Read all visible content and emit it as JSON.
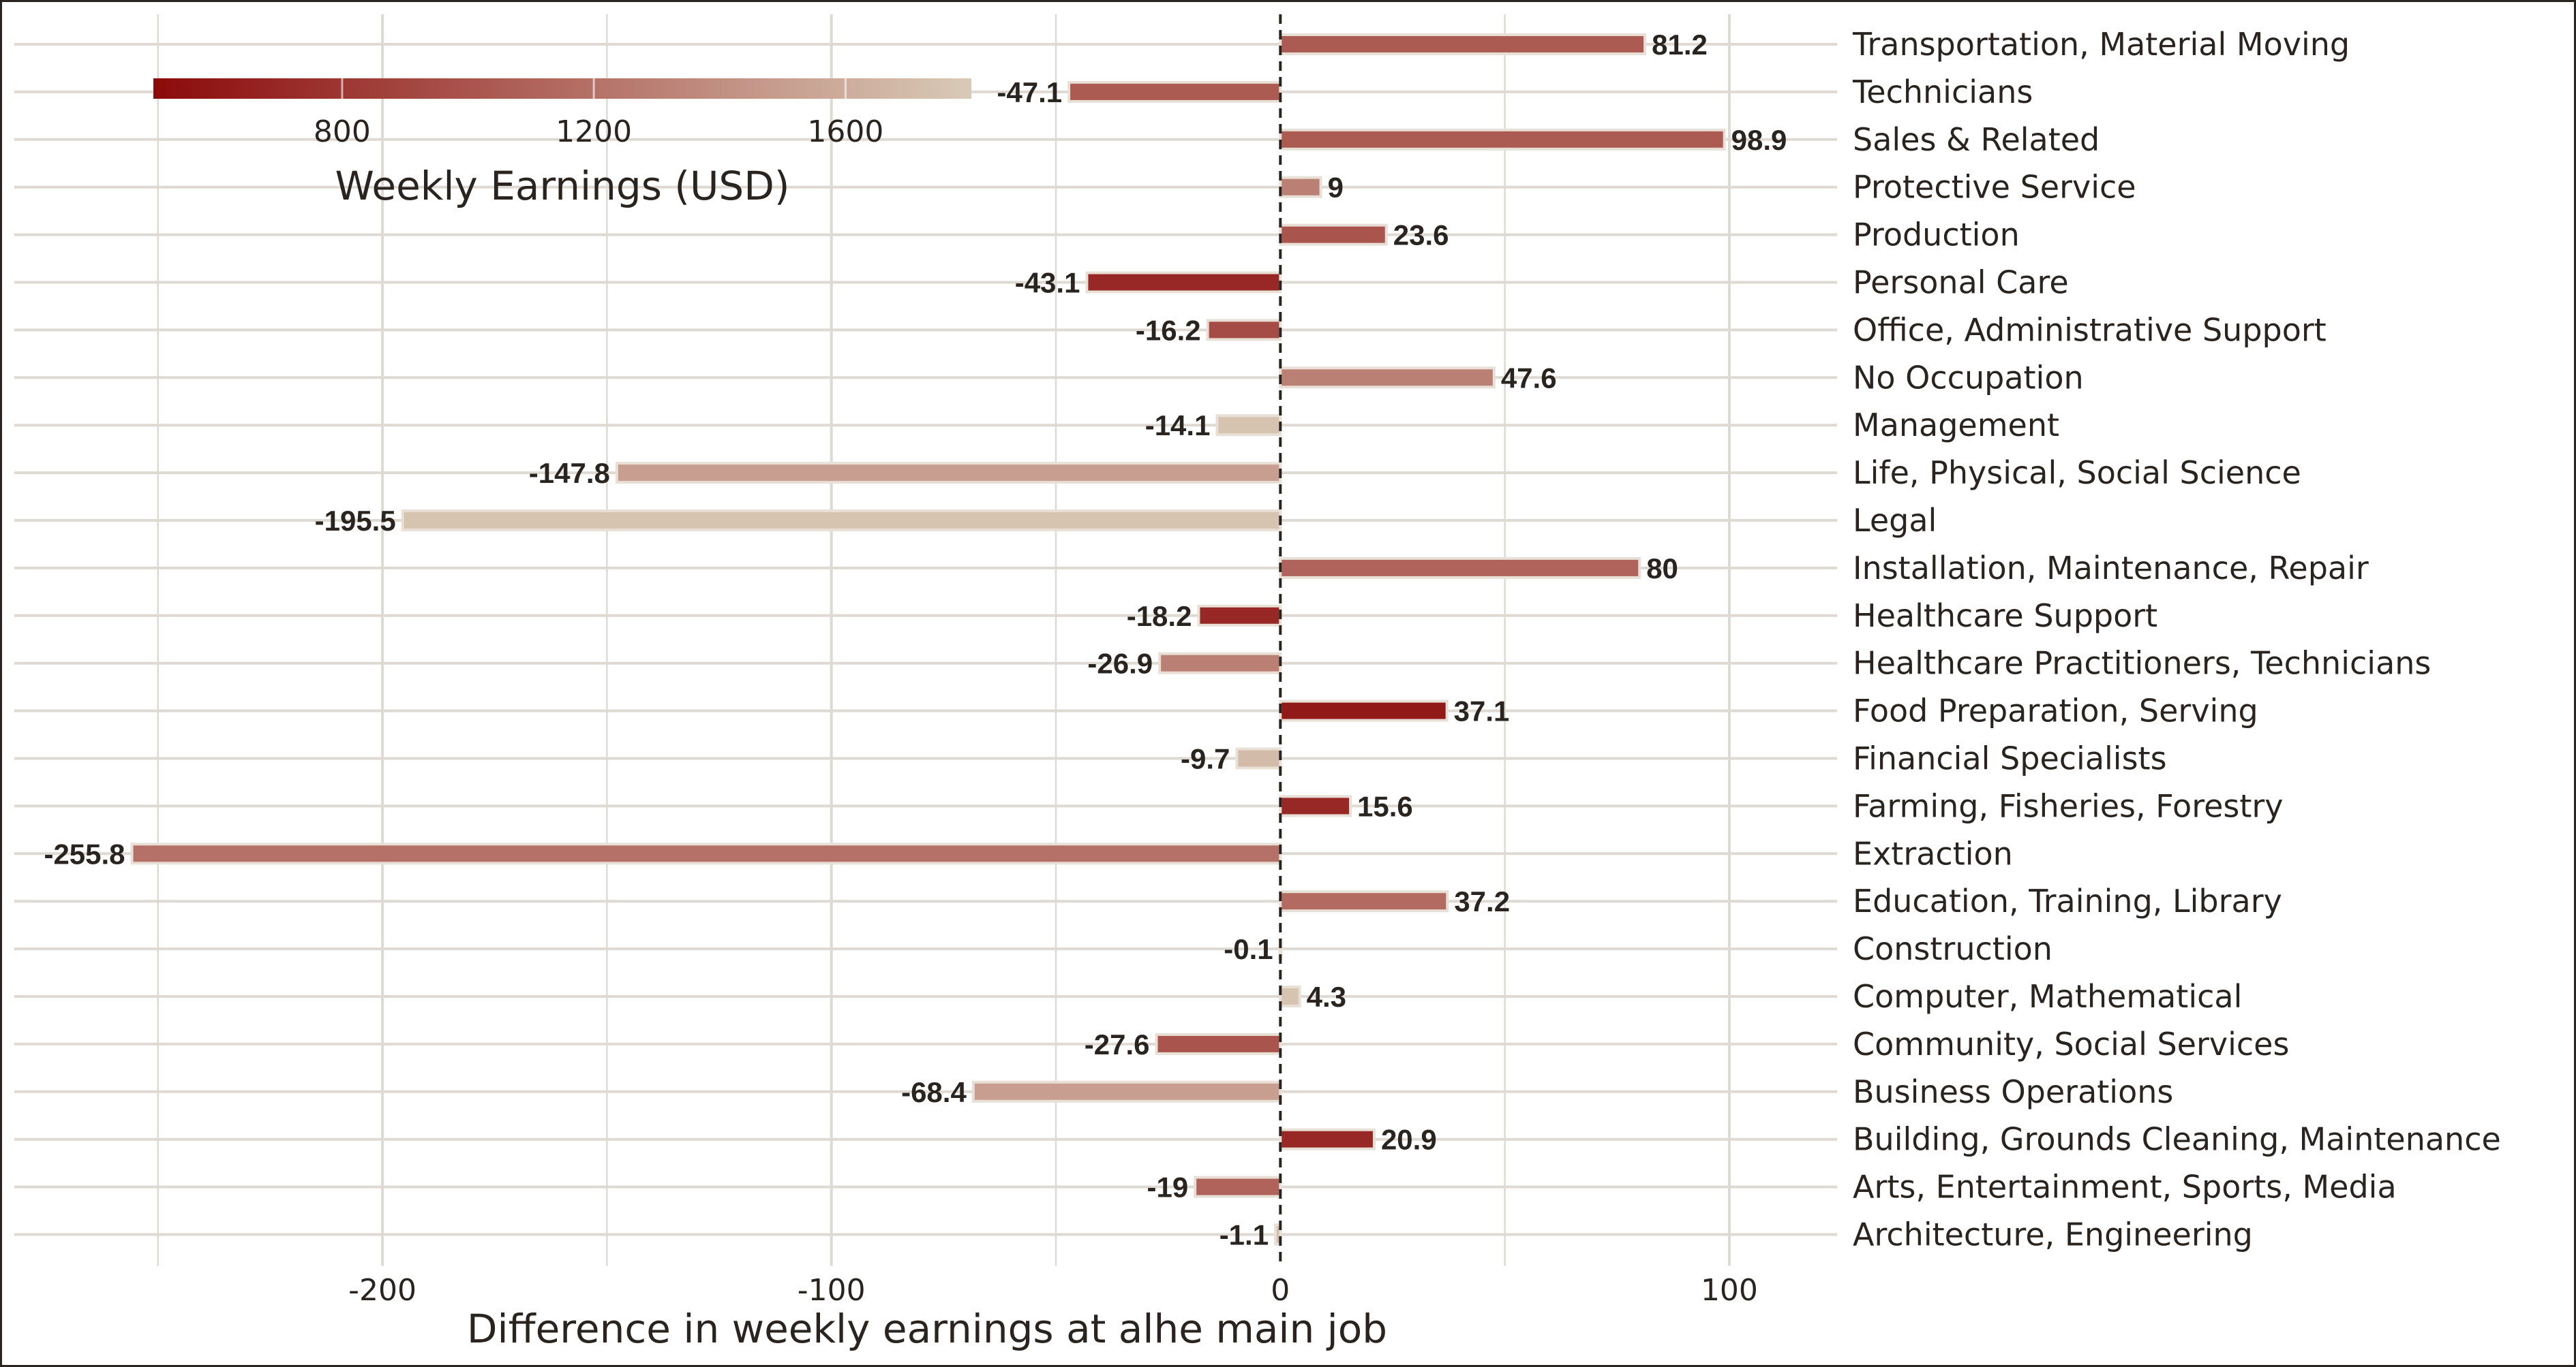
{
  "chart_data": {
    "type": "bar",
    "orientation": "horizontal",
    "xlabel": "Difference in weekly earnings at alhe main job",
    "xlim": [
      -282,
      124
    ],
    "xticks": [
      -200,
      -100,
      0,
      100
    ],
    "grid": true,
    "reference_line": 0,
    "categories": [
      "Transportation, Material Moving",
      "Technicians",
      "Sales & Related",
      "Protective Service",
      "Production",
      "Personal Care",
      "Office, Administrative Support",
      "No Occupation",
      "Management",
      "Life, Physical, Social Science",
      "Legal",
      "Installation, Maintenance, Repair",
      "Healthcare Support",
      "Healthcare Practitioners, Technicians",
      "Food Preparation, Serving",
      "Financial Specialists",
      "Farming, Fisheries, Forestry",
      "Extraction",
      "Education, Training, Library",
      "Construction",
      "Computer, Mathematical",
      "Community, Social Services",
      "Business Operations",
      "Building, Grounds Cleaning, Maintenance",
      "Arts, Entertainment, Sports, Media",
      "Architecture, Engineering"
    ],
    "values": [
      81.2,
      -47.1,
      98.9,
      9,
      23.6,
      -43.1,
      -16.2,
      47.6,
      -14.1,
      -147.8,
      -195.5,
      80,
      -18.2,
      -26.9,
      37.1,
      -9.7,
      15.6,
      -255.8,
      37.2,
      -0.1,
      4.3,
      -27.6,
      -68.4,
      20.9,
      -19,
      -1.1
    ],
    "value_labels": [
      "81.2",
      "-47.1",
      "98.9",
      "9",
      "23.6",
      "-43.1",
      "-16.2",
      "47.6",
      "-14.1",
      "-147.8",
      "-195.5",
      "80",
      "-18.2",
      "-26.9",
      "37.1",
      "-9.7",
      "15.6",
      "-255.8",
      "37.2",
      "-0.1",
      "4.3",
      "-27.6",
      "-68.4",
      "20.9",
      "-19",
      "-1.1"
    ],
    "color_values": [
      1050,
      1050,
      1050,
      1300,
      1000,
      700,
      950,
      1300,
      1750,
      1500,
      1750,
      1100,
      700,
      1300,
      600,
      1700,
      700,
      1200,
      1150,
      1600,
      1750,
      1000,
      1500,
      700,
      1100,
      1700
    ],
    "legend": {
      "title": "Weekly Earnings (USD)",
      "placement": "top-left",
      "range": [
        500,
        1800
      ],
      "ticks": [
        800,
        1200,
        1600
      ],
      "color_low": "#8b0a0a",
      "color_high": "#d9cab7"
    },
    "colors": {
      "grid": "#dedad3",
      "text": "#2a2421",
      "bar_outline": "#e8e0d6",
      "zero_line": "#2a2421"
    }
  }
}
